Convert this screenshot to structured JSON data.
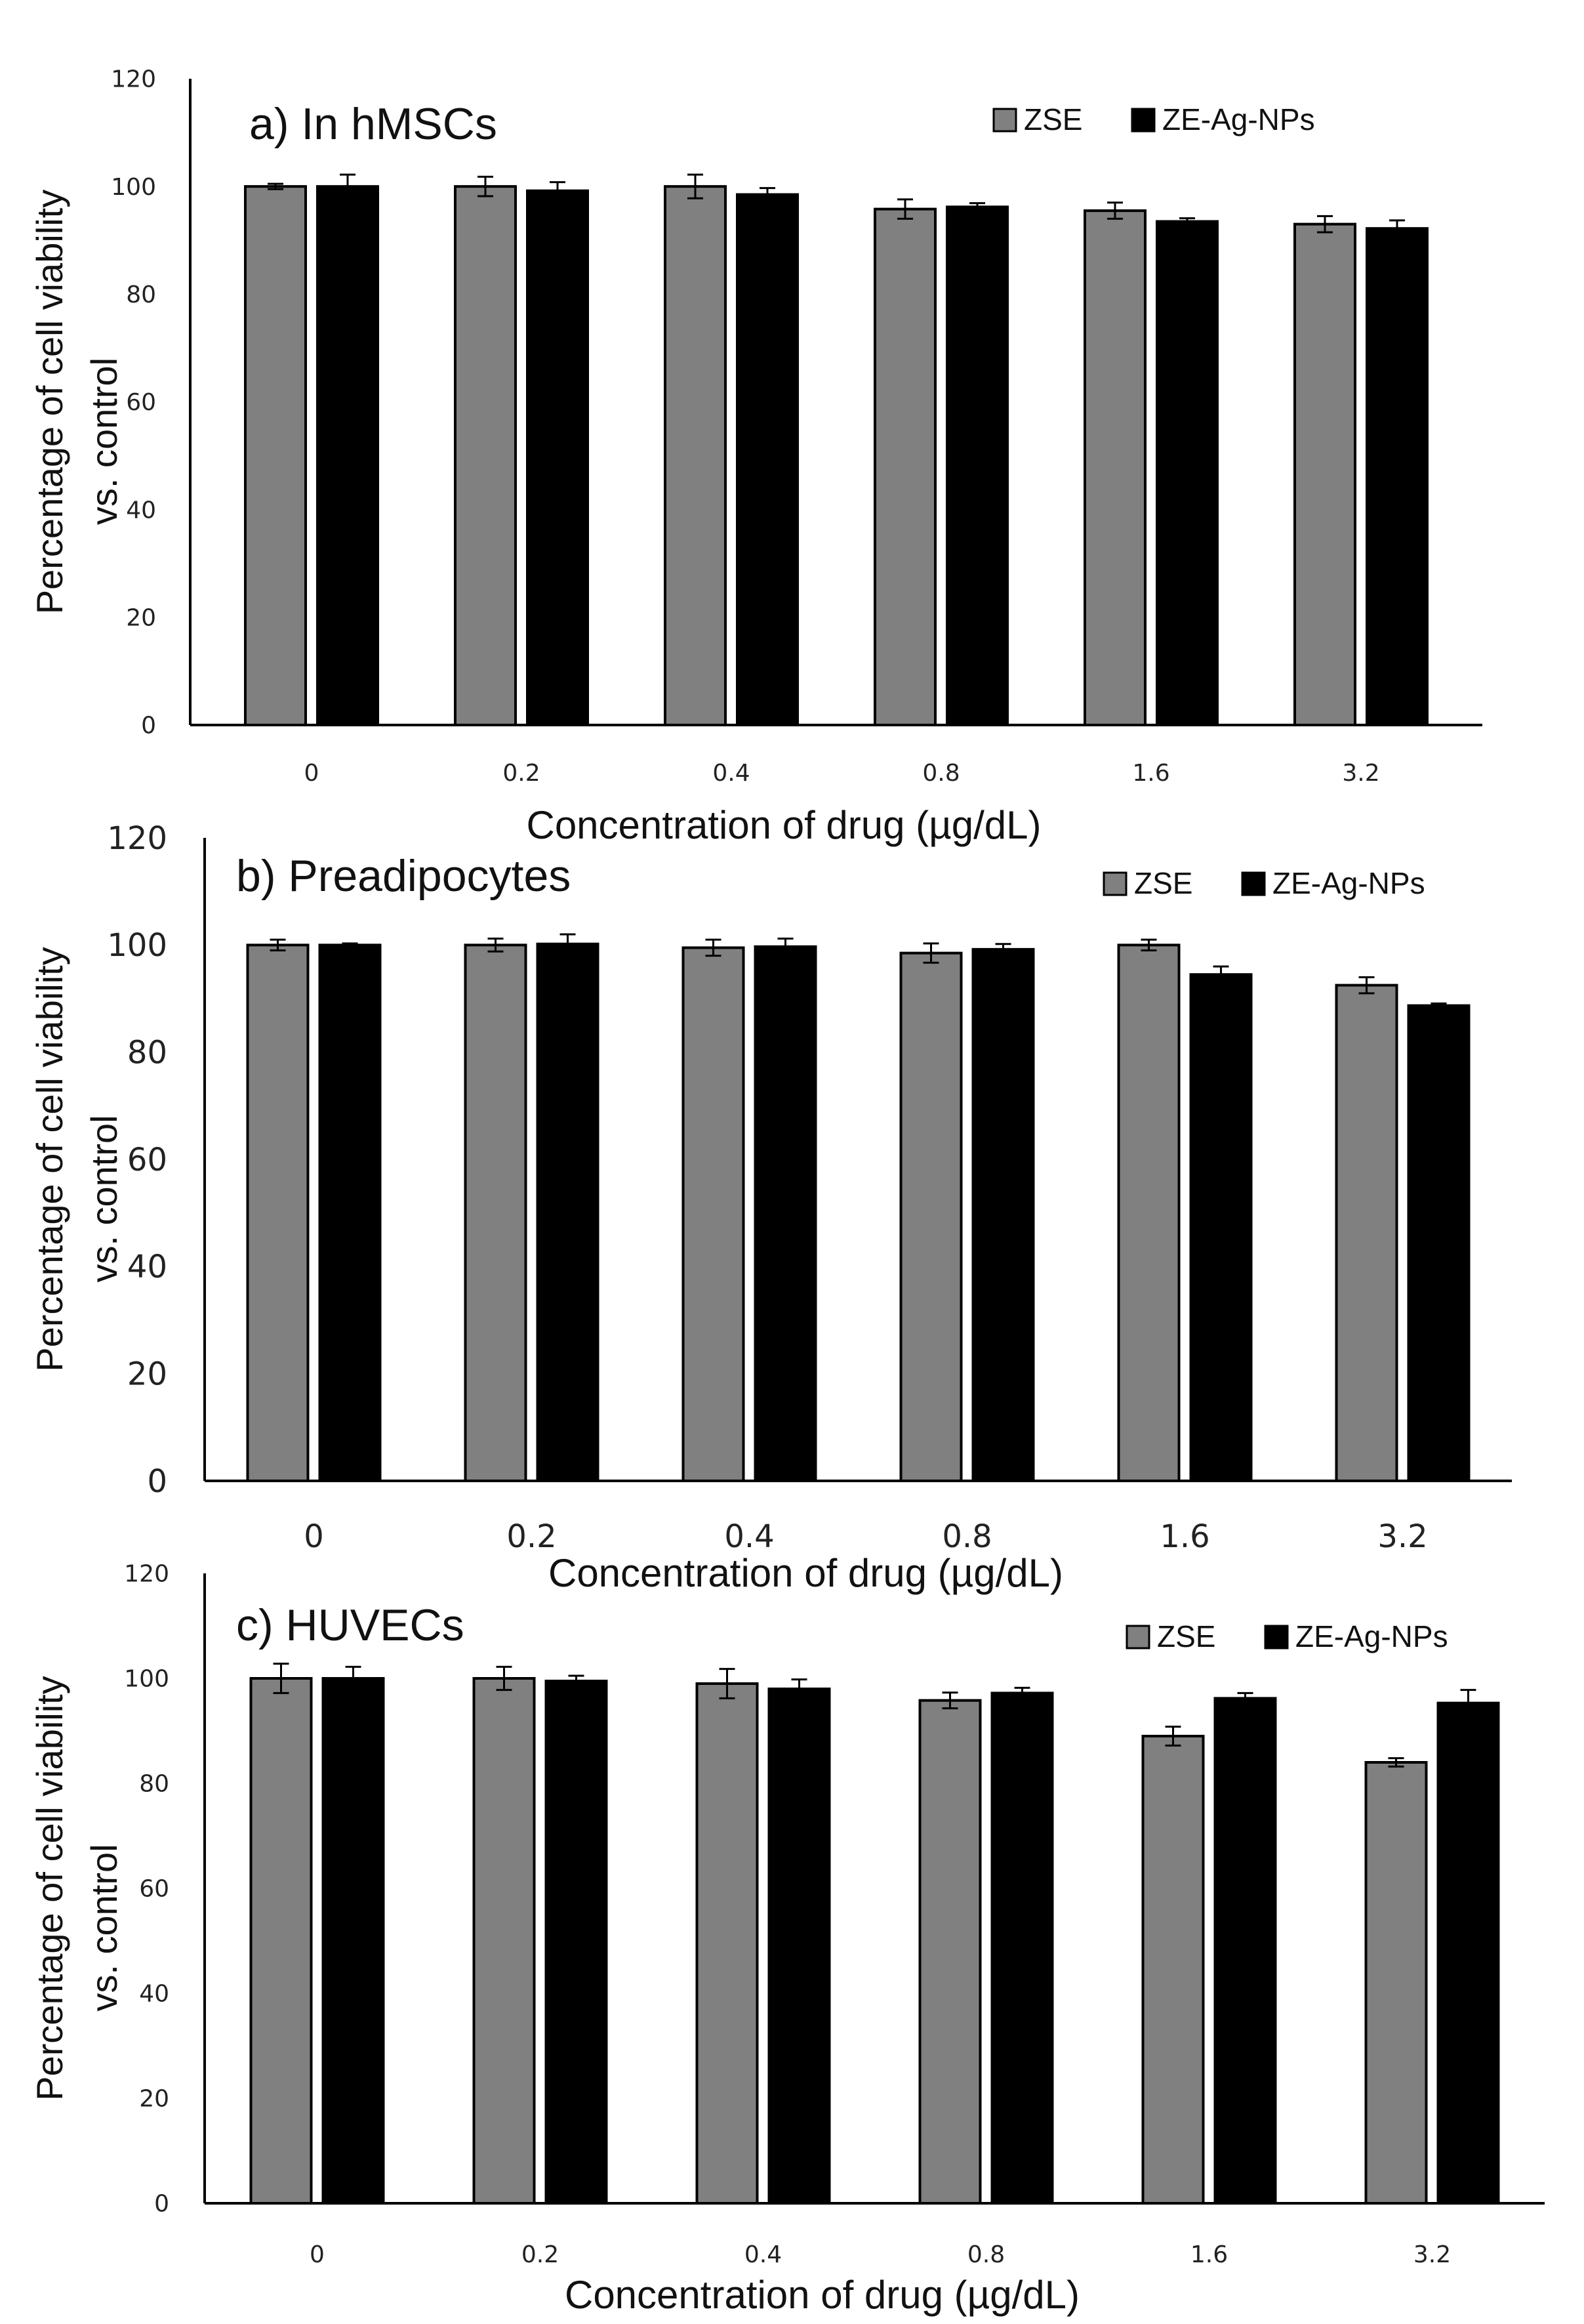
{
  "chart_data": [
    {
      "type": "bar",
      "title": "a) In hMSCs",
      "xlabel": "Concentration of drug (µg/dL)",
      "ylabel_line1": "Percentage of cell viability",
      "ylabel_line2": "vs. control",
      "categories": [
        "0",
        "0.2",
        "0.4",
        "0.8",
        "1.6",
        "3.2"
      ],
      "yticks": [
        "0",
        "20",
        "40",
        "60",
        "80",
        "100",
        "120"
      ],
      "ylim": [
        0,
        120
      ],
      "legend_position": "top-right",
      "series": [
        {
          "name": "ZSE",
          "color": "#808080",
          "values": [
            100,
            100,
            100,
            95.8,
            95.5,
            93
          ],
          "errors": [
            0.5,
            1.8,
            2.2,
            1.8,
            1.5,
            1.5
          ]
        },
        {
          "name": "ZE-Ag-NPs",
          "color": "#000000",
          "values": [
            100,
            99.2,
            98.5,
            96.2,
            93.5,
            92.2
          ],
          "errors": [
            2.2,
            1.6,
            1.2,
            0.7,
            0.6,
            1.5
          ]
        }
      ]
    },
    {
      "type": "bar",
      "title": "b) Preadipocytes",
      "xlabel": "Concentration of drug (µg/dL)",
      "ylabel_line1": "Percentage of cell viability",
      "ylabel_line2": "vs. control",
      "categories": [
        "0",
        "0.2",
        "0.4",
        "0.8",
        "1.6",
        "3.2"
      ],
      "yticks": [
        "0",
        "20",
        "40",
        "60",
        "80",
        "100",
        "120"
      ],
      "ylim": [
        0,
        120
      ],
      "legend_position": "top-right",
      "series": [
        {
          "name": "ZSE",
          "color": "#808080",
          "values": [
            100,
            100,
            99.5,
            98.5,
            100,
            92.5
          ],
          "errors": [
            1.0,
            1.2,
            1.5,
            1.8,
            1.0,
            1.5
          ]
        },
        {
          "name": "ZE-Ag-NPs",
          "color": "#000000",
          "values": [
            100,
            100.2,
            99.7,
            99.2,
            94.5,
            88.7
          ],
          "errors": [
            0.3,
            1.8,
            1.5,
            1.0,
            1.5,
            0.4
          ]
        }
      ]
    },
    {
      "type": "bar",
      "title": "c) HUVECs",
      "xlabel": "Concentration of drug (µg/dL)",
      "ylabel_line1": "Percentage of cell viability",
      "ylabel_line2": "vs. control",
      "categories": [
        "0",
        "0.2",
        "0.4",
        "0.8",
        "1.6",
        "3.2"
      ],
      "yticks": [
        "0",
        "20",
        "40",
        "60",
        "80",
        "100",
        "120"
      ],
      "ylim": [
        0,
        120
      ],
      "legend_position": "top-right",
      "series": [
        {
          "name": "ZSE",
          "color": "#808080",
          "values": [
            100,
            100,
            99,
            95.8,
            89,
            84
          ],
          "errors": [
            2.8,
            2.2,
            2.8,
            1.5,
            1.8,
            0.8
          ]
        },
        {
          "name": "ZE-Ag-NPs",
          "color": "#000000",
          "values": [
            100,
            99.5,
            98,
            97.2,
            96.2,
            95.3
          ],
          "errors": [
            2.2,
            1.0,
            1.8,
            1.0,
            1.0,
            2.5
          ]
        }
      ]
    }
  ]
}
